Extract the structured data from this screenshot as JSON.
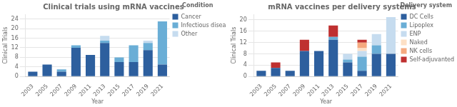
{
  "chart_data": [
    {
      "type": "bar",
      "title": "Clinical trials using mRNA vaccines",
      "xlabel": "Year",
      "ylabel": "Clinical Trials",
      "categories": [
        "2003",
        "2005",
        "2007",
        "2009",
        "2011",
        "2013",
        "2015",
        "2017",
        "2019",
        "2021"
      ],
      "series": [
        {
          "name": "Cancer",
          "color": "#2d5f9e",
          "values": [
            2,
            5,
            2,
            12,
            9,
            14,
            6,
            6,
            11,
            5
          ]
        },
        {
          "name": "Infectious disease",
          "color": "#6aaed6",
          "values": [
            0,
            0,
            1,
            1,
            0,
            1,
            2,
            7,
            3,
            18
          ]
        },
        {
          "name": "Other",
          "color": "#c6dcef",
          "values": [
            0,
            0,
            0,
            0,
            0,
            2,
            0,
            0,
            1,
            0
          ]
        }
      ],
      "legend_title": "Condition",
      "stacked": true,
      "grid": true,
      "legend": "right",
      "ylim": [
        0,
        26
      ],
      "yticks": [
        0,
        4,
        8,
        12,
        16,
        20,
        24
      ]
    },
    {
      "type": "bar",
      "title": "mRNA vaccines per delivery systems",
      "xlabel": "Year",
      "ylabel": "Clinical Trials",
      "categories": [
        "2003",
        "2005",
        "2007",
        "2009",
        "2011",
        "2013",
        "2015",
        "2017",
        "2019",
        "2021"
      ],
      "series": [
        {
          "name": "DC Cells",
          "color": "#2d5f9e",
          "values": [
            2,
            3,
            2,
            9,
            9,
            13,
            5,
            2,
            8,
            8
          ]
        },
        {
          "name": "Lipoplex",
          "color": "#6aaed6",
          "values": [
            0,
            0,
            0,
            0,
            0,
            1,
            1,
            5,
            3,
            0
          ]
        },
        {
          "name": "ENP",
          "color": "#c6dcef",
          "values": [
            0,
            0,
            0,
            0,
            0,
            0,
            2,
            2,
            4,
            13
          ]
        },
        {
          "name": "Naked",
          "color": "#fde0c5",
          "values": [
            0,
            0,
            0,
            0,
            0,
            0,
            0,
            1,
            0,
            0
          ]
        },
        {
          "name": "NK cells",
          "color": "#f5a97f",
          "values": [
            0,
            0,
            0,
            0,
            0,
            0,
            0,
            2,
            0,
            0
          ]
        },
        {
          "name": "Self-adjuvanted",
          "color": "#bf3030",
          "values": [
            0,
            2,
            0,
            4,
            0,
            4,
            0,
            1,
            0,
            0
          ]
        }
      ],
      "legend_title": "Delivery system",
      "stacked": true,
      "grid": true,
      "legend": "right",
      "ylim": [
        0,
        22
      ],
      "yticks": [
        0,
        4,
        8,
        12,
        16,
        20
      ]
    }
  ]
}
